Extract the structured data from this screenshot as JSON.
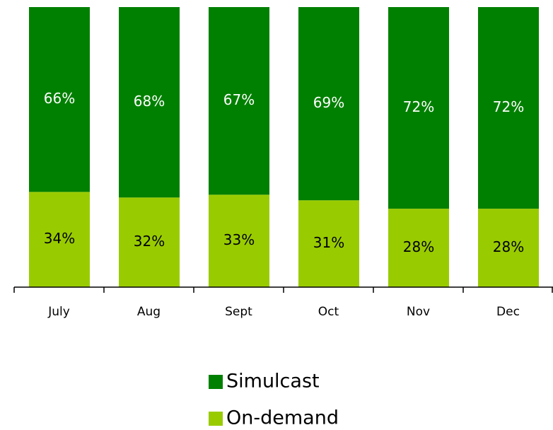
{
  "chart_data": {
    "type": "stacked_bar",
    "categories": [
      "July",
      "Aug",
      "Sept",
      "Oct",
      "Nov",
      "Dec"
    ],
    "series": [
      {
        "name": "On-demand",
        "color": "#99cc00",
        "values": [
          34,
          32,
          33,
          31,
          28,
          28
        ],
        "value_labels": [
          "34%",
          "32%",
          "33%",
          "31%",
          "28%",
          "28%"
        ]
      },
      {
        "name": "Simulcast",
        "color": "#008000",
        "values": [
          66,
          68,
          67,
          69,
          72,
          72
        ],
        "value_labels": [
          "66%",
          "68%",
          "67%",
          "69%",
          "72%",
          "72%"
        ]
      }
    ],
    "legend": "bottom"
  }
}
